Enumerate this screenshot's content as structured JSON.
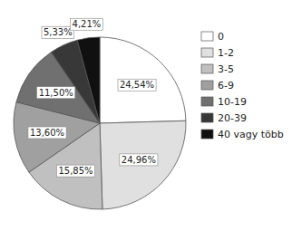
{
  "chart_data": {
    "type": "pie",
    "categories": [
      "0",
      "1-2",
      "3-5",
      "6-9",
      "10-19",
      "20-39",
      "40 vagy több"
    ],
    "values": [
      24.54,
      24.96,
      15.85,
      13.6,
      11.5,
      5.33,
      4.21
    ],
    "value_labels": [
      "24,54%",
      "24,96%",
      "15,85%",
      "13,60%",
      "11,50%",
      "5,33%",
      "4,21%"
    ],
    "colors": [
      "#ffffff",
      "#e0e0e0",
      "#c0c0c0",
      "#a0a0a0",
      "#707070",
      "#383838",
      "#101010"
    ],
    "data_labels": true,
    "legend": "right"
  }
}
